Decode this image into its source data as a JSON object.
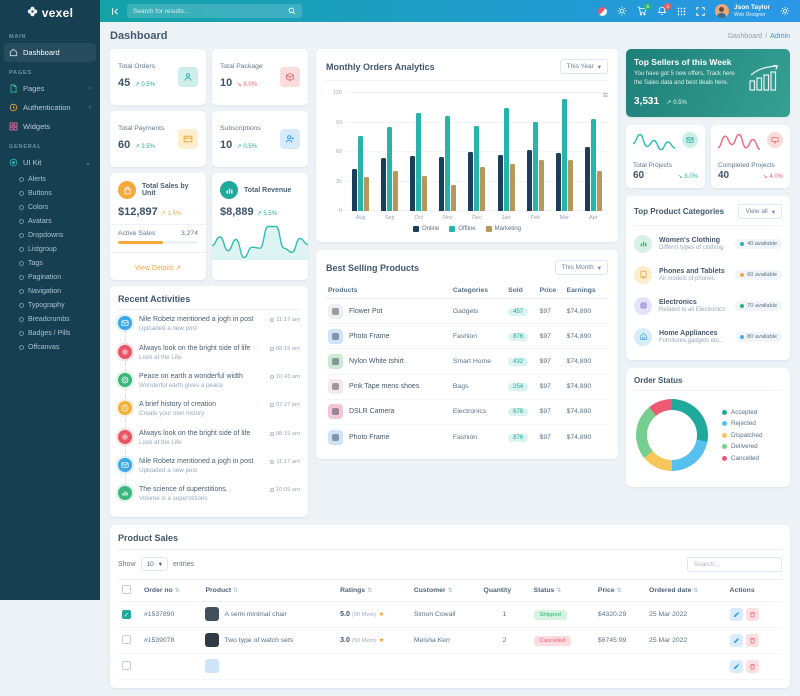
{
  "brand": {
    "name": "vexel"
  },
  "navbar": {
    "search_placeholder": "Search for results...",
    "cart_badge": "5",
    "bell_badge": "4",
    "user": {
      "name": "Json Taylor",
      "role": "Web Designer"
    }
  },
  "page": {
    "title": "Dashboard"
  },
  "breadcrumb": {
    "items": [
      {
        "label": "Dashboard"
      },
      {
        "label": "Admin"
      }
    ]
  },
  "sidebar": {
    "sections": [
      {
        "label": "MAIN",
        "items": [
          {
            "label": "Dashboard",
            "icon": "home",
            "active": true
          }
        ]
      },
      {
        "label": "PAGES",
        "items": [
          {
            "label": "Pages",
            "icon": "pages",
            "chevron": true
          },
          {
            "label": "Authentication",
            "icon": "auth",
            "chevron": true
          },
          {
            "label": "Widgets",
            "icon": "widgets"
          }
        ]
      },
      {
        "label": "GENERAL",
        "items": [
          {
            "label": "UI Kit",
            "icon": "uikit",
            "expanded": true,
            "children": [
              "Alerts",
              "Buttons",
              "Colors",
              "Avatars",
              "Dropdowns",
              "Listgroup",
              "Tags",
              "Pagination",
              "Navigation",
              "Typography",
              "Breadcrumbs",
              "Badges / Pills",
              "Offcanvas"
            ]
          }
        ]
      }
    ]
  },
  "stats": [
    {
      "label": "Total Orders",
      "value": "45",
      "delta": "0.5%",
      "dir": "up",
      "icon": "user",
      "tone": "t-teal"
    },
    {
      "label": "Total Package",
      "value": "10",
      "delta": "8.0%",
      "dir": "down",
      "icon": "box",
      "tone": "t-red"
    },
    {
      "label": "Total Payments",
      "value": "60",
      "delta": "3.5%",
      "dir": "up",
      "icon": "card",
      "tone": "t-yellow"
    },
    {
      "label": "Subscriptions",
      "value": "10",
      "delta": "0.5%",
      "dir": "up",
      "icon": "userplus",
      "tone": "t-blue"
    }
  ],
  "sales_unit": {
    "title": "Total Sales by Unit",
    "value": "$12,897",
    "delta": "1.5%",
    "active_label": "Active Sales",
    "active_value": "3,274",
    "progress_pct": 56,
    "link_label": "View Details"
  },
  "revenue": {
    "title": "Total Revenue",
    "value": "$8,889",
    "delta": "5.5%"
  },
  "top_sellers": {
    "title": "Top Sellers of this Week",
    "desc": "You have got 5 new offers, Track here the Sales data and best deals here.",
    "value": "3,531",
    "delta": "0.5%"
  },
  "projects": [
    {
      "label": "Total Projects",
      "value": "60",
      "delta": "8.0%",
      "delta_color": "#2ab5ad",
      "icon": "mail",
      "tone": "t-teal",
      "spark_id": "total_projects_spark"
    },
    {
      "label": "Completed Projects",
      "value": "40",
      "delta": "4.0%",
      "delta_color": "#ec5f72",
      "icon": "monitor",
      "tone": "t-red",
      "spark_id": "completed_projects_spark"
    }
  ],
  "categories": {
    "title": "Top Product Categories",
    "action_label": "View all",
    "items": [
      {
        "name": "Women's Clothing",
        "desc": "Differnt types of clothing",
        "badge": "40 available",
        "dot": "#2ab5ad",
        "icon": "bars",
        "icon_bg": "#d8f1e6",
        "icon_color": "#2bb673"
      },
      {
        "name": "Phones and Tablets",
        "desc": "All models of phones",
        "badge": "60 available",
        "dot": "#f5a93b",
        "icon": "tablet",
        "icon_bg": "#fdeecd",
        "icon_color": "#eba12c"
      },
      {
        "name": "Electronics",
        "desc": "Related to all Electronics",
        "badge": "70 available",
        "dot": "#2bb673",
        "icon": "cpu",
        "icon_bg": "#e6e2fa",
        "icon_color": "#8b7fe0"
      },
      {
        "name": "Home Appliances",
        "desc": "Furnitures,gadgets etc...",
        "badge": "80 available",
        "dot": "#56a8ee",
        "icon": "house",
        "icon_bg": "#d8ecfa",
        "icon_color": "#56a8ee"
      }
    ]
  },
  "activities": {
    "title": "Recent Activities",
    "items": [
      {
        "icon": "mail",
        "color": "#3aa7e8",
        "title": "Nile Robetz mentioned a jogh in post",
        "sub": "Uploaded a new post",
        "time": "11:17 am"
      },
      {
        "icon": "gear",
        "color": "#ea5465",
        "title": "Always look on the bright side of life",
        "sub": "Look at the Life",
        "time": "08:19 am"
      },
      {
        "icon": "smile",
        "color": "#3bb77e",
        "title": "Peace on earth a wonderful width",
        "sub": "Wonderful earth gives a peace",
        "time": "10:43 am"
      },
      {
        "icon": "clock",
        "color": "#f0b138",
        "title": "A brief history of creation",
        "sub": "Create your own history",
        "time": "07:27 pm"
      },
      {
        "icon": "gear",
        "color": "#ea5465",
        "title": "Always look on the bright side of life",
        "sub": "Look at the Life",
        "time": "08:19 am"
      },
      {
        "icon": "mail",
        "color": "#3aa7e8",
        "title": "Nile Robetz mentioned a jogh in post",
        "sub": "Uploaded a new post",
        "time": "11:17 am"
      },
      {
        "icon": "chart",
        "color": "#3bb77e",
        "title": "The science of superstitions.",
        "sub": "Volume is a superstitions",
        "time": "10:09 am"
      }
    ]
  },
  "best_selling": {
    "title": "Best Selling Products",
    "filter": "This Month",
    "columns": [
      "Products",
      "Categories",
      "Sold",
      "Price",
      "Earnings"
    ],
    "rows": [
      {
        "name": "Flower Pot",
        "cat": "Gadgets",
        "sold": "457",
        "price": "$97",
        "earn": "$74,890",
        "thumb": "#efeff2"
      },
      {
        "name": "Photo Frame",
        "cat": "Fashion",
        "sold": "876",
        "price": "$97",
        "earn": "$74,890",
        "thumb": "#cfe4f8"
      },
      {
        "name": "Nylon White tshirt",
        "cat": "Smart Home",
        "sold": "432",
        "price": "$97",
        "earn": "$74,890",
        "thumb": "#cde9d6"
      },
      {
        "name": "Pink Tape mens shoes",
        "cat": "Bags",
        "sold": "254",
        "price": "$97",
        "earn": "$74,890",
        "thumb": "#f6e7e9"
      },
      {
        "name": "DSLR Camera",
        "cat": "Electronics",
        "sold": "678",
        "price": "$97",
        "earn": "$74,890",
        "thumb": "#f0c6d8"
      },
      {
        "name": "Photo Frame",
        "cat": "Fashion",
        "sold": "876",
        "price": "$97",
        "earn": "$74,890",
        "thumb": "#cfe4f8"
      }
    ]
  },
  "product_sales": {
    "title": "Product Sales",
    "show_label": "Show",
    "entries_value": "10",
    "entries_label": "entries",
    "search_placeholder": "Search...",
    "columns": [
      {
        "label": "Order no",
        "sort": true
      },
      {
        "label": "Product",
        "sort": true
      },
      {
        "label": "Ratings",
        "sort": true
      },
      {
        "label": "Customer",
        "sort": true
      },
      {
        "label": "Quantity",
        "sort": false
      },
      {
        "label": "Status",
        "sort": true
      },
      {
        "label": "Price",
        "sort": true
      },
      {
        "label": "Ordered date",
        "sort": true
      },
      {
        "label": "Actions",
        "sort": false
      }
    ],
    "rows": [
      {
        "checked": true,
        "order": "#1537890",
        "product": "A semi minimal chair",
        "thumb": "#42505e",
        "rating": "5.0",
        "rating_note": "(90 Mem)",
        "customer": "Simon Cowall",
        "qty": "1",
        "status": "Shipped",
        "status_tone": "green",
        "price": "$4320.29",
        "date": "25 Mar 2022"
      },
      {
        "checked": false,
        "order": "#1539078",
        "product": "Two type of watch sets",
        "thumb": "#2f3a45",
        "rating": "3.0",
        "rating_note": "(50 Mem)",
        "customer": "Meisha Kerr",
        "qty": "2",
        "status": "Cancelled",
        "status_tone": "red",
        "price": "$6745.99",
        "date": "25 Mar 2022"
      },
      {
        "checked": false,
        "order": "",
        "product": "",
        "thumb": "#cfe4f8",
        "rating": "",
        "rating_note": "",
        "customer": "",
        "qty": "",
        "status": "",
        "status_tone": "green",
        "price": "",
        "date": ""
      }
    ]
  },
  "chart_data": [
    {
      "id": "monthly_orders",
      "type": "bar",
      "title": "Monthly Orders Analytics",
      "filter": "This Year",
      "categories": [
        "Aug",
        "Sep",
        "Oct",
        "Nov",
        "Dec",
        "Jan",
        "Feb",
        "Mar",
        "Apr"
      ],
      "series": [
        {
          "name": "Online",
          "color": "#1c3e5c",
          "values": [
            43,
            54,
            56,
            55,
            60,
            57,
            62,
            59,
            65
          ]
        },
        {
          "name": "Offline",
          "color": "#26b4ab",
          "values": [
            76,
            85,
            100,
            97,
            87,
            105,
            91,
            114,
            94
          ]
        },
        {
          "name": "Marketing",
          "color": "#b5985c",
          "values": [
            35,
            41,
            36,
            26,
            45,
            48,
            52,
            52,
            41
          ]
        }
      ],
      "ylim": [
        0,
        120
      ],
      "yticks": [
        0,
        30,
        60,
        90,
        120
      ],
      "grid": true,
      "legend_position": "bottom"
    },
    {
      "id": "order_status",
      "type": "pie",
      "title": "Order Status",
      "labels": [
        "Accepted",
        "Rejected",
        "Dispatched",
        "Delivered",
        "Cancelled"
      ],
      "values": [
        28,
        22,
        14,
        25,
        11
      ],
      "colors": [
        "#1fa99b",
        "#56c0ee",
        "#f6c65b",
        "#77cf8f",
        "#ee5a74"
      ],
      "legend_position": "right"
    },
    {
      "id": "revenue_spark",
      "type": "area",
      "color": "#2fbcb4",
      "values": [
        38,
        55,
        28,
        50,
        15,
        35,
        33,
        75,
        75,
        33,
        25,
        52,
        40
      ]
    },
    {
      "id": "total_projects_spark",
      "type": "line",
      "color": "#2fbcb4",
      "values": [
        8,
        14,
        6,
        10,
        4,
        9,
        5
      ]
    },
    {
      "id": "completed_projects_spark",
      "type": "line",
      "color": "#ee6a7c",
      "values": [
        6,
        13,
        8,
        14,
        6,
        11,
        5
      ]
    }
  ]
}
